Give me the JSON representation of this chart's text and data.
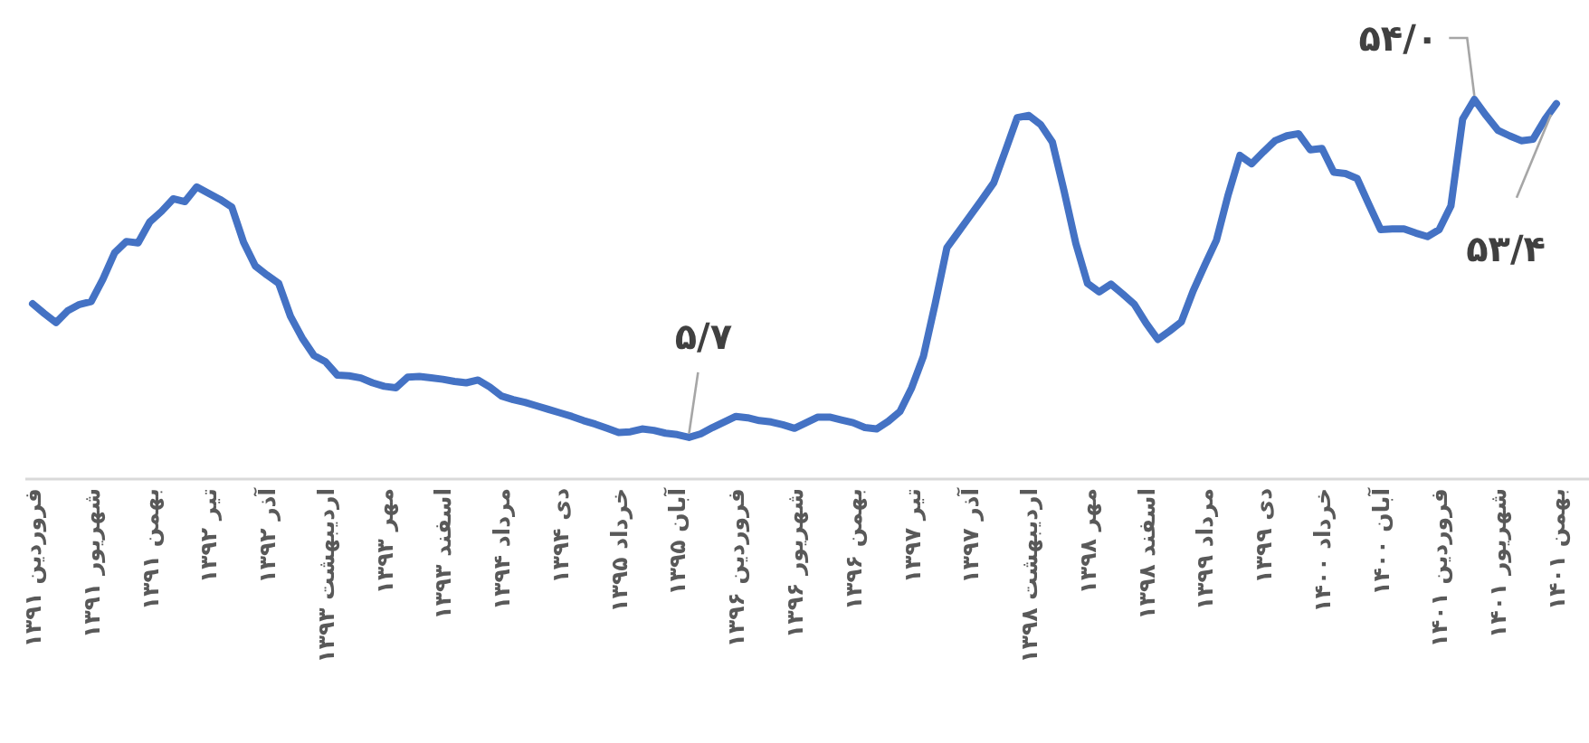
{
  "chart_data": {
    "type": "line",
    "categories": [
      "فروردین ۱۳۹۱",
      null,
      null,
      null,
      null,
      "شهریور ۱۳۹۱",
      null,
      null,
      null,
      null,
      "بهمن ۱۳۹۱",
      null,
      null,
      null,
      null,
      "تیر ۱۳۹۲",
      null,
      null,
      null,
      null,
      "آذر ۱۳۹۲",
      null,
      null,
      null,
      null,
      "اردیبهشت ۱۳۹۳",
      null,
      null,
      null,
      null,
      "مهر ۱۳۹۳",
      null,
      null,
      null,
      null,
      "اسفند ۱۳۹۳",
      null,
      null,
      null,
      null,
      "مرداد ۱۳۹۴",
      null,
      null,
      null,
      null,
      "دی ۱۳۹۴",
      null,
      null,
      null,
      null,
      "خرداد ۱۳۹۵",
      null,
      null,
      null,
      null,
      "آبان ۱۳۹۵",
      null,
      null,
      null,
      null,
      "فروردین ۱۳۹۶",
      null,
      null,
      null,
      null,
      "شهریور ۱۳۹۶",
      null,
      null,
      null,
      null,
      "بهمن ۱۳۹۶",
      null,
      null,
      null,
      null,
      "تیر ۱۳۹۷",
      null,
      null,
      null,
      null,
      "آذر ۱۳۹۷",
      null,
      null,
      null,
      null,
      "اردیبهشت ۱۳۹۸",
      null,
      null,
      null,
      null,
      "مهر ۱۳۹۸",
      null,
      null,
      null,
      null,
      "اسفند ۱۳۹۸",
      null,
      null,
      null,
      null,
      "مرداد ۱۳۹۹",
      null,
      null,
      null,
      null,
      "دی ۱۳۹۹",
      null,
      null,
      null,
      null,
      "خرداد ۱۴۰۰",
      null,
      null,
      null,
      null,
      "آبان ۱۴۰۰",
      null,
      null,
      null,
      null,
      "فروردین ۱۴۰۱",
      null,
      null,
      null,
      null,
      "شهریور ۱۴۰۱",
      null,
      null,
      null,
      null,
      "بهمن ۱۴۰۱"
    ],
    "series": [
      {
        "color": "#4472c4",
        "values": [
          24.8,
          23.4,
          22.1,
          23.8,
          24.7,
          25.1,
          28.3,
          32.1,
          33.7,
          33.5,
          36.5,
          38.0,
          39.8,
          39.4,
          41.5,
          40.6,
          39.7,
          38.6,
          33.6,
          30.2,
          28.9,
          27.7,
          23.0,
          19.9,
          17.4,
          16.5,
          14.6,
          14.5,
          14.2,
          13.5,
          13.0,
          12.8,
          14.3,
          14.4,
          14.2,
          14.0,
          13.7,
          13.5,
          13.9,
          12.9,
          11.6,
          11.1,
          10.7,
          10.2,
          9.7,
          9.2,
          8.7,
          8.1,
          7.6,
          7.0,
          6.4,
          6.5,
          6.9,
          6.7,
          6.3,
          6.1,
          5.7,
          6.2,
          7.1,
          7.9,
          8.7,
          8.5,
          8.1,
          7.9,
          7.5,
          7.0,
          7.8,
          8.6,
          8.6,
          8.2,
          7.8,
          7.1,
          6.9,
          8.0,
          9.4,
          12.8,
          17.3,
          24.8,
          32.8,
          35.1,
          37.4,
          39.7,
          42.1,
          46.7,
          51.4,
          51.7,
          50.4,
          47.9,
          40.9,
          33.4,
          27.7,
          26.5,
          27.6,
          26.2,
          24.7,
          22.0,
          19.7,
          20.9,
          22.2,
          26.6,
          30.3,
          33.9,
          40.4,
          46.0,
          44.8,
          46.5,
          48.1,
          48.8,
          49.1,
          46.8,
          47.0,
          43.6,
          43.4,
          42.7,
          39.0,
          35.4,
          35.5,
          35.5,
          34.9,
          34.4,
          35.4,
          38.8,
          51.2,
          54.0,
          51.7,
          49.6,
          48.8,
          48.1,
          48.3,
          51.1,
          53.4
        ],
        "value_labels": [
          null,
          null,
          null,
          null,
          null,
          null,
          null,
          null,
          null,
          null,
          null,
          null,
          null,
          null,
          null,
          null,
          null,
          null,
          null,
          null,
          null,
          null,
          null,
          null,
          null,
          null,
          null,
          null,
          null,
          null,
          null,
          null,
          null,
          null,
          null,
          null,
          null,
          null,
          null,
          null,
          null,
          null,
          null,
          null,
          null,
          null,
          null,
          null,
          null,
          null,
          null,
          null,
          null,
          null,
          null,
          null,
          "۵/۷",
          null,
          null,
          null,
          null,
          null,
          null,
          null,
          null,
          null,
          null,
          null,
          null,
          null,
          null,
          null,
          null,
          null,
          null,
          null,
          null,
          null,
          null,
          null,
          null,
          null,
          null,
          null,
          null,
          null,
          null,
          null,
          null,
          null,
          null,
          null,
          null,
          null,
          null,
          null,
          null,
          null,
          null,
          null,
          null,
          null,
          null,
          null,
          null,
          null,
          null,
          null,
          null,
          null,
          null,
          null,
          null,
          null,
          null,
          null,
          null,
          null,
          null,
          null,
          null,
          null,
          null,
          "۵۴/۰",
          null,
          null,
          null,
          null,
          null,
          null,
          "۵۳/۴"
        ]
      }
    ],
    "tick_labels": "x",
    "marker": "none",
    "line_style": "solid"
  }
}
